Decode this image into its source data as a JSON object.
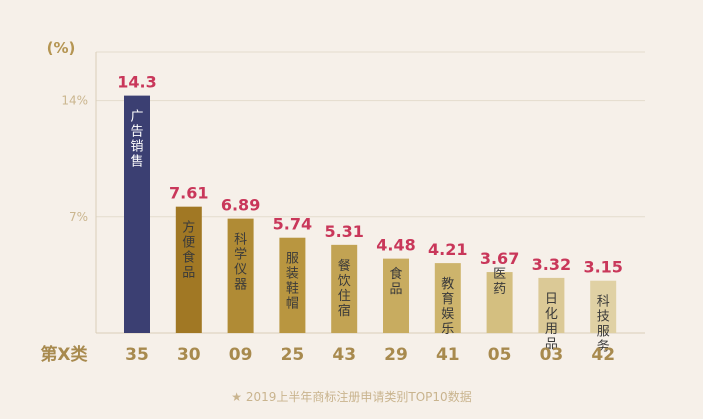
{
  "chart_data": {
    "type": "bar",
    "unit_label": "(%)",
    "x_axis_label": "第X类",
    "ylim": [
      0,
      17.5
    ],
    "y_ticks": [
      {
        "value": 14,
        "label": "14%"
      },
      {
        "value": 7,
        "label": "7%"
      }
    ],
    "categories": [
      "35",
      "30",
      "09",
      "25",
      "43",
      "29",
      "41",
      "05",
      "03",
      "42"
    ],
    "category_names": [
      "广告销售",
      "方便食品",
      "科学仪器",
      "服装鞋帽",
      "餐饮住宿",
      "食品",
      "教育娱乐",
      "医药",
      "日化用品",
      "科技服务"
    ],
    "values": [
      14.3,
      7.61,
      6.89,
      5.74,
      5.31,
      4.48,
      4.21,
      3.67,
      3.32,
      3.15
    ],
    "value_labels": [
      "14.3",
      "7.61",
      "6.89",
      "5.74",
      "5.31",
      "4.48",
      "4.21",
      "3.67",
      "3.32",
      "3.15"
    ],
    "bar_colors": [
      "#3b3f72",
      "#a17824",
      "#b08b35",
      "#b99640",
      "#c2a353",
      "#c8ac60",
      "#cdb46c",
      "#d4bf80",
      "#dbc996",
      "#e0d1a4"
    ],
    "name_colors": [
      "#ffffff",
      "#3a3a3a",
      "#3a3a3a",
      "#3a3a3a",
      "#3a3a3a",
      "#3a3a3a",
      "#3a3a3a",
      "#3a3a3a",
      "#3a3a3a",
      "#3a3a3a"
    ],
    "grid": true
  },
  "caption": "★  2019上半年商标注册申请类别TOP10数据"
}
